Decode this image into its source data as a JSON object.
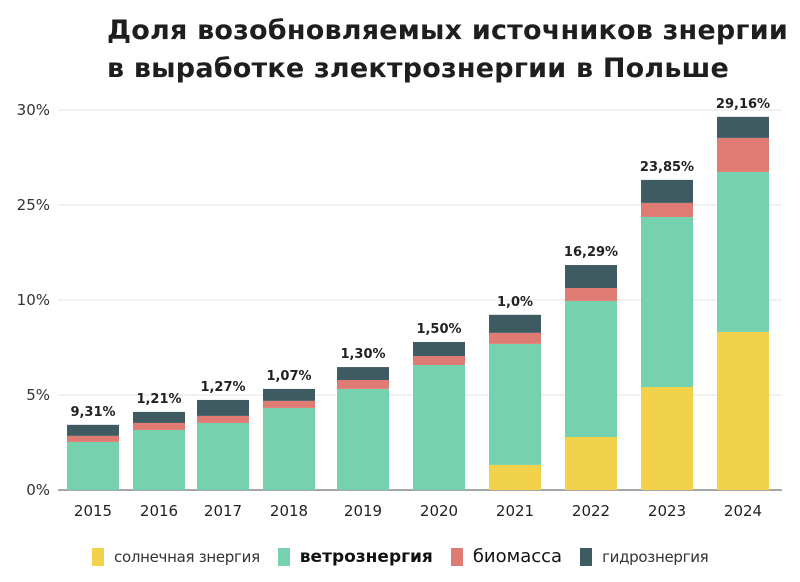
{
  "chart_data": {
    "type": "bar",
    "stacked": true,
    "title_lines": [
      "Доля возобновляемых источников знергии",
      "в выработке злектрознергии в Польше"
    ],
    "xlabel": "",
    "ylabel": "",
    "categories": [
      "2015",
      "2016",
      "2017",
      "2018",
      "2019",
      "2020",
      "2021",
      "2022",
      "2023",
      "2024"
    ],
    "y_tick_labels": [
      "0%",
      "5%",
      "10%",
      "25%",
      "30%"
    ],
    "ylim": [
      0,
      20
    ],
    "grid": true,
    "legend_position": "bottom",
    "series": [
      {
        "name": "солнечная знергия",
        "color": "#f2d24b",
        "values": [
          0,
          0,
          0,
          0,
          0,
          0,
          1.32,
          2.79,
          5.42,
          8.32
        ]
      },
      {
        "name": "ветрознергия",
        "color": "#76d1ae",
        "values": [
          2.53,
          3.16,
          3.53,
          4.32,
          5.32,
          6.58,
          6.37,
          7.16,
          8.95,
          8.42
        ]
      },
      {
        "name": "биомасса",
        "color": "#e07b74",
        "values": [
          0.32,
          0.37,
          0.37,
          0.37,
          0.47,
          0.47,
          0.58,
          0.68,
          0.74,
          1.79
        ]
      },
      {
        "name": "гидрознергия",
        "color": "#3f5b62",
        "values": [
          0.58,
          0.58,
          0.84,
          0.63,
          0.68,
          0.74,
          0.95,
          1.21,
          1.21,
          1.11
        ]
      }
    ],
    "data_labels": [
      "9,31%",
      "1,21%",
      "1,27%",
      "1,07%",
      "1,30%",
      "1,50%",
      "1,0%",
      "16,29%",
      "23,85%",
      "29,16%"
    ]
  }
}
